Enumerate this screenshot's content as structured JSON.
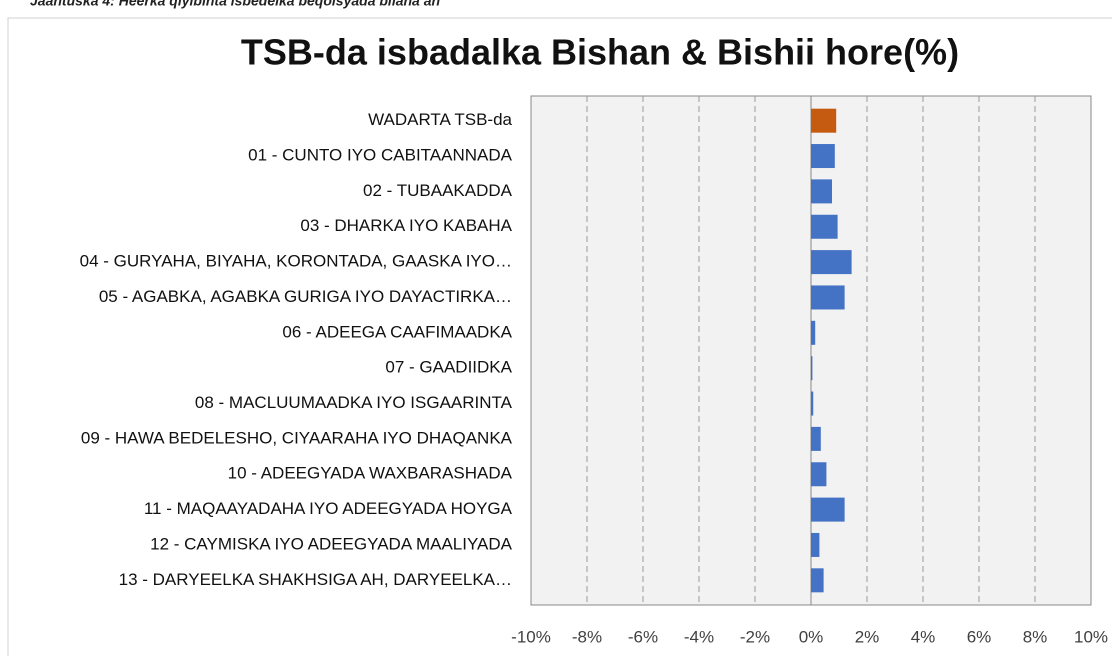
{
  "caption": "Jaantuska 4: Heerka qiyibinta isbedelka beqolsyada bilaha ah",
  "chart_data": {
    "type": "hbar",
    "title": "TSB-da isbadalka Bishan & Bishii hore(%)",
    "categories": [
      "WADARTA TSB-da",
      "01 - CUNTO IYO CABITAANNADA",
      "02 - TUBAAKADDA",
      "03 - DHARKA IYO KABAHA",
      "04 - GURYAHA, BIYAHA, KORONTADA, GAASKA IYO…",
      "05 - AGABKA, AGABKA GURIGA IYO DAYACTIRKA…",
      "06 - ADEEGA CAAFIMAADKA",
      "07 - GAADIIDKA",
      "08 - MACLUUMAADKA IYO ISGAARINTA",
      "09 - HAWA BEDELESHO, CIYAARAHA IYO DHAQANKA",
      "10 - ADEEGYADA WAXBARASHADA",
      "11 - MAQAAYADAHA IYO ADEEGYADA HOYGA",
      "12 - CAYMISKA IYO ADEEGYADA MAALIYADA",
      "13 - DARYEELKA SHAKHSIGA AH, DARYEELKA…"
    ],
    "values": [
      0.9,
      0.85,
      0.75,
      0.95,
      1.45,
      1.2,
      0.15,
      0.05,
      0.08,
      0.35,
      0.55,
      1.2,
      0.3,
      0.45
    ],
    "colors": [
      "#c55a11",
      "#4472c4",
      "#4472c4",
      "#4472c4",
      "#4472c4",
      "#4472c4",
      "#4472c4",
      "#4472c4",
      "#4472c4",
      "#4472c4",
      "#4472c4",
      "#4472c4",
      "#4472c4",
      "#4472c4"
    ],
    "xlim": [
      -10,
      10
    ],
    "xticks": [
      {
        "value": -10,
        "label": "-10%"
      },
      {
        "value": -8,
        "label": "-8%"
      },
      {
        "value": -6,
        "label": "-6%"
      },
      {
        "value": -4,
        "label": "-4%"
      },
      {
        "value": -2,
        "label": "-2%"
      },
      {
        "value": 0,
        "label": "0%"
      },
      {
        "value": 2,
        "label": "2%"
      },
      {
        "value": 4,
        "label": "4%"
      },
      {
        "value": 6,
        "label": "6%"
      },
      {
        "value": 8,
        "label": "8%"
      },
      {
        "value": 10,
        "label": "10%"
      }
    ],
    "grid": true
  }
}
